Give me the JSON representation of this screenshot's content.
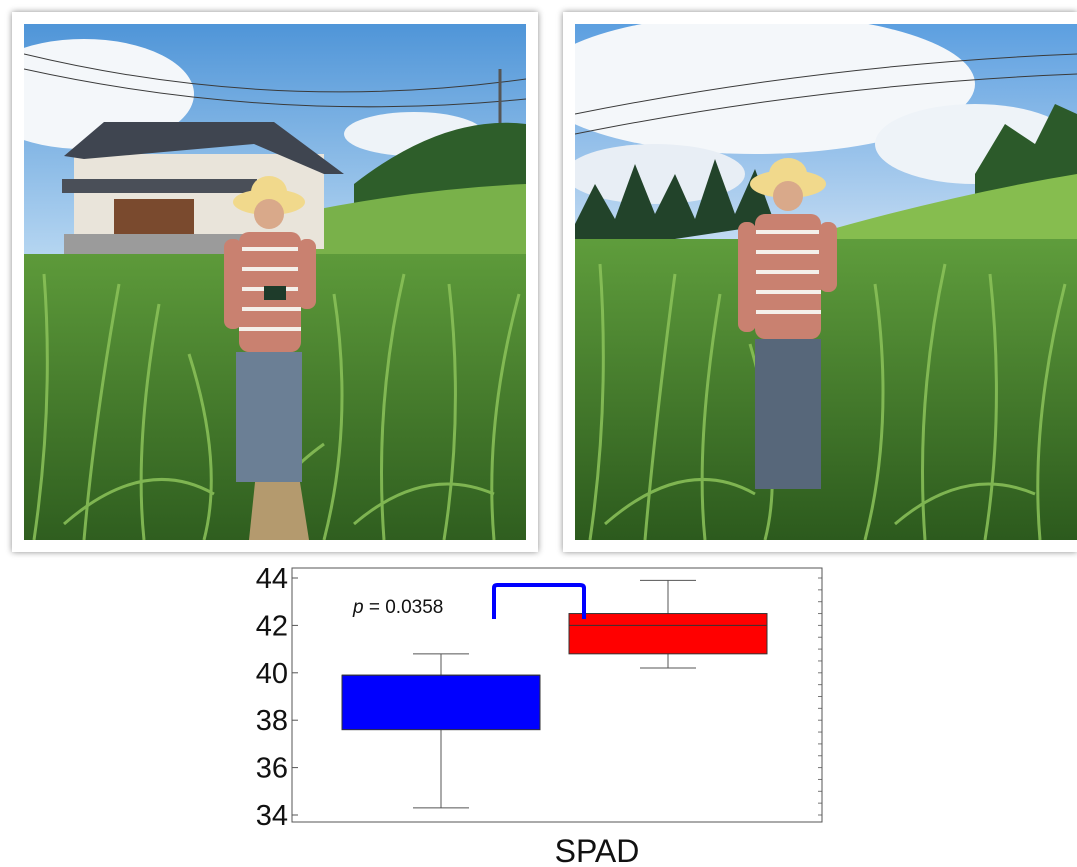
{
  "photos": [
    {
      "scene": "person-standing-in-millet-field-with-house"
    },
    {
      "scene": "person-standing-in-millet-field-with-forest"
    }
  ],
  "chart_data": {
    "type": "box",
    "xlabel": "SPAD",
    "ylabel": "",
    "title": "",
    "ylim": [
      34,
      44
    ],
    "yticks": [
      34,
      36,
      38,
      40,
      42,
      44
    ],
    "boxes": [
      {
        "color": "#0000ff",
        "whisker_low": 34.3,
        "q1": 37.6,
        "median": 39.9,
        "q3": 39.9,
        "whisker_high": 40.8
      },
      {
        "color": "#ff0000",
        "whisker_low": 40.2,
        "q1": 40.8,
        "median": 42.0,
        "q3": 42.5,
        "whisker_high": 43.9
      }
    ],
    "annotation": {
      "prefix": "p",
      "text": " = 0.0358",
      "bracket_color": "#0000ff"
    },
    "grid": false
  }
}
